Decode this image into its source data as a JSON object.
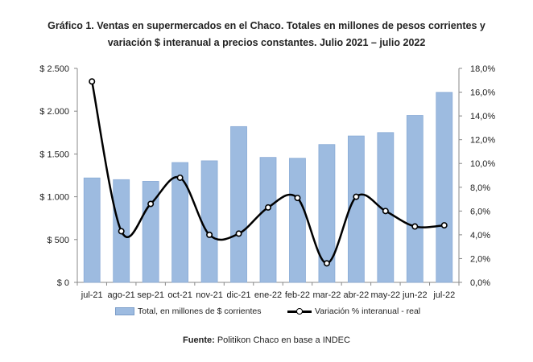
{
  "chart_data": {
    "type": "bar+line",
    "title_line1": "Gráfico 1. Ventas en supermercados en el Chaco. Totales en millones de pesos corrientes y",
    "title_line2": "variación $ interanual a precios constantes. Julio 2021 – julio 2022",
    "categories": [
      "jul-21",
      "ago-21",
      "sep-21",
      "oct-21",
      "nov-21",
      "dic-21",
      "ene-22",
      "feb-22",
      "mar-22",
      "abr-22",
      "may-22",
      "jun-22",
      "jul-22"
    ],
    "series": [
      {
        "name": "Total, en millones de $ corrientes",
        "type": "bar",
        "axis": "left",
        "color": "#9dbbe0",
        "values": [
          1220,
          1200,
          1180,
          1400,
          1420,
          1820,
          1460,
          1450,
          1610,
          1710,
          1750,
          1950,
          2220
        ]
      },
      {
        "name": "Variación % interanual - real",
        "type": "line",
        "axis": "right",
        "color": "#000000",
        "values": [
          16.9,
          4.3,
          6.6,
          8.8,
          4.0,
          4.1,
          6.3,
          7.1,
          1.6,
          7.2,
          6.0,
          4.7,
          4.8
        ]
      }
    ],
    "y_left": {
      "ylim": [
        0,
        2500
      ],
      "ticks": [
        0,
        500,
        1000,
        1500,
        2000,
        2500
      ],
      "tick_labels": [
        "$ 0",
        "$ 500",
        "$ 1.000",
        "$ 1.500",
        "$ 2.000",
        "$ 2.500"
      ]
    },
    "y_right": {
      "ylim": [
        0,
        18
      ],
      "ticks": [
        0,
        2,
        4,
        6,
        8,
        10,
        12,
        14,
        16,
        18
      ],
      "tick_labels": [
        "0,0%",
        "2,0%",
        "4,0%",
        "6,0%",
        "8,0%",
        "10,0%",
        "12,0%",
        "14,0%",
        "16,0%",
        "18,0%"
      ]
    },
    "legend": {
      "position": "bottom",
      "bar_label": "Total, en millones de $ corrientes",
      "line_label": "Variación % interanual - real"
    },
    "grid": false
  },
  "source": {
    "label": "Fuente:",
    "text": " Politikon Chaco en base a INDEC"
  }
}
